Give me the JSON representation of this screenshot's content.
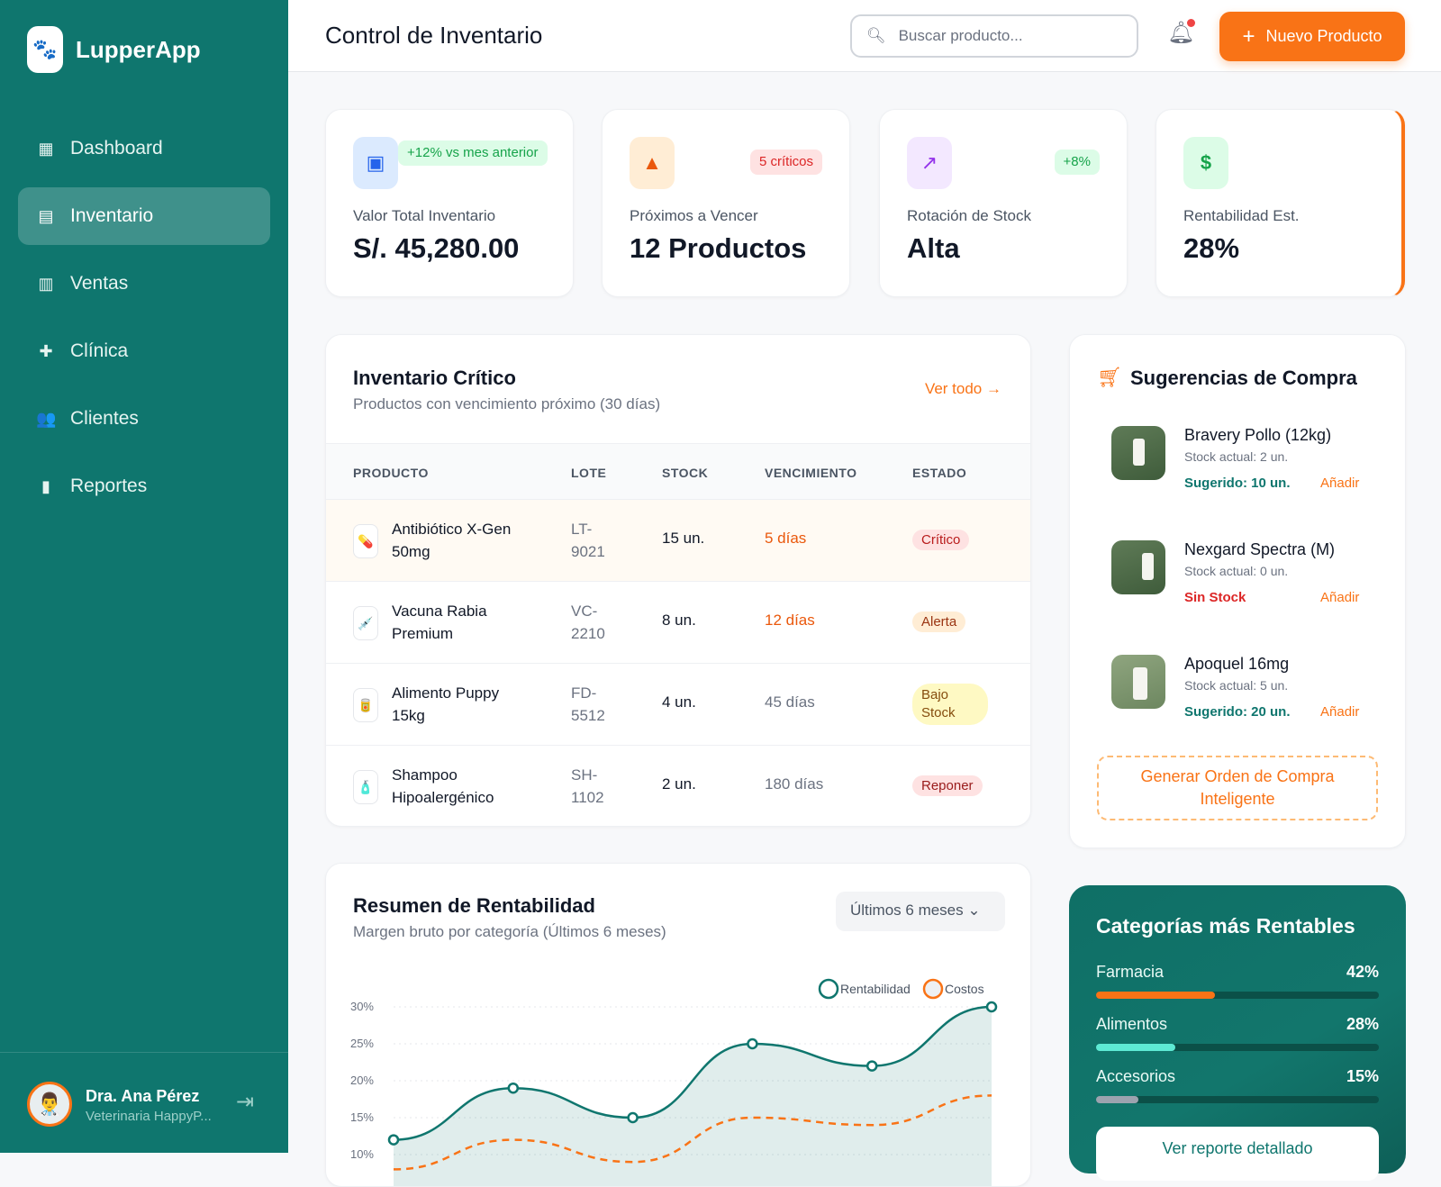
{
  "app": {
    "name": "LupperApp"
  },
  "sidebar": {
    "items": [
      {
        "label": "Dashboard",
        "icon": "dashboard-icon",
        "active": false
      },
      {
        "label": "Inventario",
        "icon": "archive-icon",
        "active": true
      },
      {
        "label": "Ventas",
        "icon": "cash-register-icon",
        "active": false
      },
      {
        "label": "Clínica",
        "icon": "medical-kit-icon",
        "active": false
      },
      {
        "label": "Clientes",
        "icon": "users-icon",
        "active": false
      },
      {
        "label": "Reportes",
        "icon": "bar-chart-icon",
        "active": false
      }
    ],
    "user": {
      "name": "Dra. Ana Pérez",
      "role": "Veterinaria HappyP..."
    }
  },
  "header": {
    "title": "Control de Inventario",
    "search_placeholder": "Buscar producto...",
    "new_button": "Nuevo Producto"
  },
  "stats": [
    {
      "label": "Valor Total Inventario",
      "value": "S/. 45,280.00",
      "badge": "+12% vs mes anterior",
      "icon": "archive-icon"
    },
    {
      "label": "Próximos a Vencer",
      "value": "12 Productos",
      "badge": "5 críticos",
      "icon": "warning-icon"
    },
    {
      "label": "Rotación de Stock",
      "value": "Alta",
      "badge": "+8%",
      "icon": "trending-up-icon"
    },
    {
      "label": "Rentabilidad Est.",
      "value": "28%",
      "badge": "",
      "icon": "dollar-icon"
    }
  ],
  "critical": {
    "title": "Inventario Crítico",
    "subtitle": "Productos con vencimiento próximo (30 días)",
    "view_all": "Ver todo →",
    "columns": [
      "PRODUCTO",
      "LOTE",
      "STOCK",
      "VENCIMIENTO",
      "ESTADO"
    ],
    "rows": [
      {
        "product": "Antibiótico X-Gen 50mg",
        "lot": "LT-9021",
        "stock": "15 un.",
        "expiry": "5 días",
        "status": "Crítico",
        "icon": "pill-icon"
      },
      {
        "product": "Vacuna Rabia Premium",
        "lot": "VC-2210",
        "stock": "8 un.",
        "expiry": "12 días",
        "status": "Alerta",
        "icon": "syringe-icon"
      },
      {
        "product": "Alimento Puppy 15kg",
        "lot": "FD-5512",
        "stock": "4 un.",
        "expiry": "45 días",
        "status": "Bajo Stock",
        "icon": "food-can-icon"
      },
      {
        "product": "Shampoo Hipoalergénico",
        "lot": "SH-1102",
        "stock": "2 un.",
        "expiry": "180 días",
        "status": "Reponer",
        "icon": "shampoo-bottle-icon"
      }
    ]
  },
  "suggestions": {
    "title": "Sugerencias de Compra",
    "items": [
      {
        "name": "Bravery Pollo (12kg)",
        "stock": "Stock actual: 2 un.",
        "suggest": "Sugerido: 10 un.",
        "add": "Añadir"
      },
      {
        "name": "Nexgard Spectra (M)",
        "stock": "Stock actual: 0 un.",
        "suggest": "Sin Stock",
        "add": "Añadir"
      },
      {
        "name": "Apoquel 16mg",
        "stock": "Stock actual: 5 un.",
        "suggest": "Sugerido: 20 un.",
        "add": "Añadir"
      }
    ],
    "generate": "Generar Orden de Compra Inteligente"
  },
  "profitability": {
    "title": "Resumen de Rentabilidad",
    "subtitle": "Margen bruto por categoría (Últimos 6 meses)",
    "range": "Últimos 6 meses"
  },
  "chart_data": {
    "type": "line",
    "series": [
      {
        "name": "Rentabilidad",
        "values": [
          12,
          19,
          15,
          25,
          22,
          30
        ],
        "color": "#0f766e"
      },
      {
        "name": "Costos",
        "values": [
          8,
          12,
          9,
          15,
          14,
          18
        ],
        "color": "#f97316"
      }
    ],
    "yticks": [
      "30%",
      "25%",
      "20%",
      "15%",
      "10%"
    ],
    "ylim": [
      10,
      30
    ],
    "legend": "top-right",
    "grid": true
  },
  "categories": {
    "title": "Categorías más Rentables",
    "items": [
      {
        "label": "Farmacia",
        "value": "42%",
        "pct": 42,
        "color": "#f97316"
      },
      {
        "label": "Alimentos",
        "value": "28%",
        "pct": 28,
        "color": "#5eead4"
      },
      {
        "label": "Accesorios",
        "value": "15%",
        "pct": 15,
        "color": "#9ca3af"
      }
    ],
    "button": "Ver reporte detallado"
  }
}
